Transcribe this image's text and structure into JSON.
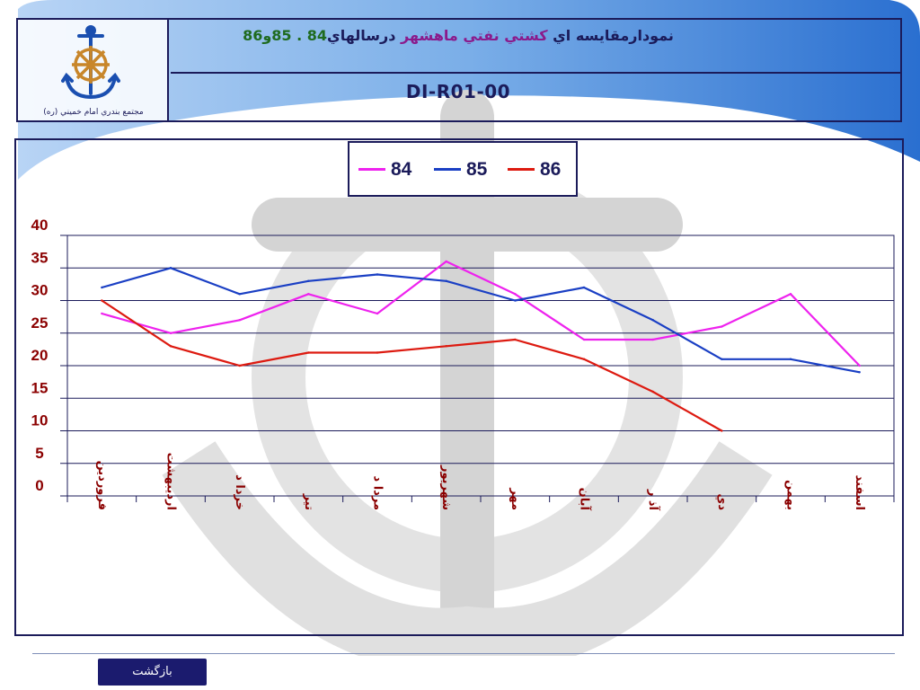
{
  "header": {
    "title_part1": "نمودارمقايسه اي",
    "title_part2": "کشتي نفتي",
    "title_part3": "ماهشهر",
    "title_part4": "درسالهاي",
    "title_part5": "84 . 85و86",
    "code": "DI-R01-00",
    "logo_caption": "مجتمع بندري امام خميني (ره)"
  },
  "colors": {
    "series_84": "#ee22ee",
    "series_85": "#1a3fc4",
    "series_86": "#dd1a10",
    "frame": "#1b1b5a",
    "axis_tick_text": "#8b0000"
  },
  "chart_data": {
    "type": "line",
    "categories": [
      "فروردين",
      "ارديبهشت",
      "خردا د",
      "تير",
      "مردا د",
      "شهريور",
      "مهر",
      "آبان",
      "آذ ر",
      "دي",
      "بهمن",
      "اسفند"
    ],
    "series": [
      {
        "name": "84",
        "values": [
          28,
          25,
          27,
          31,
          28,
          36,
          31,
          24,
          24,
          26,
          31,
          20
        ]
      },
      {
        "name": "85",
        "values": [
          32,
          35,
          31,
          33,
          34,
          33,
          30,
          32,
          27,
          21,
          21,
          19
        ]
      },
      {
        "name": "86",
        "values": [
          30,
          23,
          20,
          22,
          22,
          23,
          24,
          21,
          16,
          10,
          null,
          null
        ]
      }
    ],
    "y_ticks": [
      "0",
      "5",
      "10",
      "15",
      "20",
      "25",
      "30",
      "35",
      "40"
    ],
    "ylim": [
      0,
      40
    ],
    "grid": true,
    "legend_position": "top-center"
  },
  "footer": {
    "back_label": "بازگشت"
  }
}
